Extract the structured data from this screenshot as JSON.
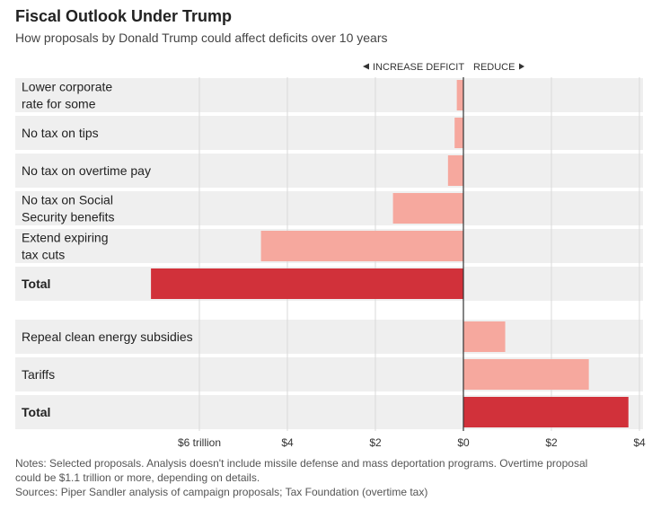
{
  "title": "Fiscal Outlook Under Trump",
  "subtitle": "How proposals by Donald Trump could affect deficits over 10 years",
  "colors": {
    "row_background": "#efefef",
    "bar_light": "#f6a89e",
    "bar_total": "#d1313a",
    "gridline": "#d8d8d8",
    "zero_line": "#333333"
  },
  "chart_data": {
    "type": "bar",
    "orientation": "horizontal",
    "direction_labels": {
      "increase": "INCREASE DEFICIT",
      "reduce": "REDUCE"
    },
    "unit": "trillion dollars over 10 years",
    "xlim": [
      -7,
      4
    ],
    "x_ticks": [
      {
        "value": -6,
        "label": "$6 trillion"
      },
      {
        "value": -4,
        "label": "$4"
      },
      {
        "value": -2,
        "label": "$2"
      },
      {
        "value": 0,
        "label": "$0"
      },
      {
        "value": 2,
        "label": "$2"
      },
      {
        "value": 4,
        "label": "$4"
      }
    ],
    "groups": [
      {
        "rows": [
          {
            "label": [
              "Lower corporate",
              "rate for some"
            ],
            "value": -0.15,
            "is_total": false
          },
          {
            "label": [
              "No tax on tips"
            ],
            "value": -0.2,
            "is_total": false
          },
          {
            "label": [
              "No tax on overtime pay"
            ],
            "value": -0.35,
            "is_total": false
          },
          {
            "label": [
              "No tax on Social",
              "Security benefits"
            ],
            "value": -1.6,
            "is_total": false
          },
          {
            "label": [
              "Extend expiring",
              "tax cuts"
            ],
            "value": -4.6,
            "is_total": false
          },
          {
            "label": [
              "Total"
            ],
            "value": -7.1,
            "is_total": true
          }
        ]
      },
      {
        "rows": [
          {
            "label": [
              "Repeal clean energy subsidies"
            ],
            "value": 0.95,
            "is_total": false
          },
          {
            "label": [
              "Tariffs"
            ],
            "value": 2.85,
            "is_total": false
          },
          {
            "label": [
              "Total"
            ],
            "value": 3.75,
            "is_total": true
          }
        ]
      }
    ]
  },
  "notes": {
    "line1": "Notes: Selected proposals.  Analysis doesn't include missile defense and mass deportation programs. Overtime proposal",
    "line2": "could be $1.1 trillion or more, depending on details.",
    "sources": "Sources: Piper Sandler analysis of campaign proposals; Tax Foundation (overtime tax)"
  }
}
